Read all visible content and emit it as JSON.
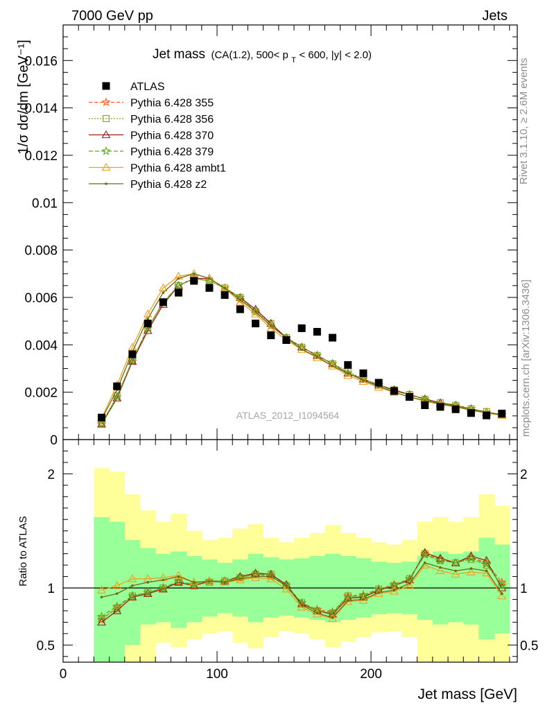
{
  "header": {
    "left": "7000 GeV pp",
    "right": "Jets",
    "title_main": "Jet mass",
    "title_sub": "(CA(1.2), 500< p",
    "title_sub_idx": "T",
    "title_sub_end": " < 600, |y| < 2.0)"
  },
  "side": {
    "rivet": "Rivet 3.1.10, ≥ 2.6M events",
    "mcplots": "mcplots.cern.ch [arXiv:1306.3436]"
  },
  "watermark": "ATLAS_2012_I1094564",
  "chart_data": [
    {
      "type": "line",
      "xlabel": "Jet mass [GeV]",
      "ylabel": "1/σ dσ/dm [GeV⁻¹]",
      "xlim": [
        0,
        295
      ],
      "ylim": [
        0,
        0.0175
      ],
      "yticks": [
        0,
        0.002,
        0.004,
        0.006,
        0.008,
        0.01,
        0.012,
        0.014,
        0.016
      ],
      "ytick_labels": [
        "0",
        "0.002",
        "0.004",
        "0.006",
        "0.008",
        "0.01",
        "0.012",
        "0.014",
        "0.016"
      ],
      "x": [
        25,
        35,
        45,
        55,
        65,
        75,
        85,
        95,
        105,
        115,
        125,
        135,
        145,
        155,
        165,
        175,
        185,
        195,
        205,
        215,
        225,
        235,
        245,
        255,
        265,
        275,
        285
      ],
      "data": {
        "name": "ATLAS",
        "values": [
          0.00093,
          0.00225,
          0.0036,
          0.0049,
          0.0058,
          0.0062,
          0.0067,
          0.0064,
          0.0061,
          0.0055,
          0.0049,
          0.0044,
          0.0042,
          0.0047,
          0.00455,
          0.0043,
          0.00315,
          0.0028,
          0.0024,
          0.00205,
          0.0018,
          0.00145,
          0.00138,
          0.00128,
          0.00112,
          0.00102,
          0.0011
        ]
      },
      "series": [
        {
          "name": "Pythia 6.428 355",
          "color": "#ff5a1f",
          "marker": "star",
          "dash": "5,3",
          "values": [
            0.00065,
            0.0018,
            0.0033,
            0.0047,
            0.0058,
            0.0065,
            0.0068,
            0.0067,
            0.0064,
            0.0059,
            0.0054,
            0.0048,
            0.0043,
            0.0039,
            0.00355,
            0.0032,
            0.0028,
            0.00255,
            0.0023,
            0.00205,
            0.0019,
            0.0017,
            0.0015,
            0.00145,
            0.0013,
            0.00115,
            0.00105
          ]
        },
        {
          "name": "Pythia 6.428 356",
          "color": "#7fa01e",
          "marker": "square",
          "dash": "2,2",
          "values": [
            0.00068,
            0.00185,
            0.00335,
            0.0047,
            0.0058,
            0.0065,
            0.0068,
            0.0067,
            0.0064,
            0.006,
            0.0054,
            0.0049,
            0.0043,
            0.0039,
            0.00355,
            0.0032,
            0.0029,
            0.00255,
            0.0023,
            0.0021,
            0.0019,
            0.0017,
            0.00155,
            0.00145,
            0.0013,
            0.00118,
            0.00105
          ]
        },
        {
          "name": "Pythia 6.428 370",
          "color": "#a01818",
          "marker": "triangle",
          "dash": "",
          "values": [
            0.00065,
            0.00175,
            0.0033,
            0.0046,
            0.0057,
            0.0065,
            0.0068,
            0.0068,
            0.0064,
            0.006,
            0.0055,
            0.0049,
            0.0043,
            0.0039,
            0.00355,
            0.0032,
            0.0028,
            0.00255,
            0.0023,
            0.0021,
            0.0019,
            0.00172,
            0.00155,
            0.00145,
            0.0013,
            0.00115,
            0.00105
          ]
        },
        {
          "name": "Pythia 6.428 379",
          "color": "#5cae1e",
          "marker": "star",
          "dash": "6,3",
          "values": [
            0.00068,
            0.0018,
            0.00335,
            0.0047,
            0.0058,
            0.0065,
            0.0068,
            0.0067,
            0.0064,
            0.006,
            0.0054,
            0.0048,
            0.0043,
            0.0039,
            0.00355,
            0.0032,
            0.0028,
            0.00255,
            0.0023,
            0.00205,
            0.0019,
            0.0017,
            0.0015,
            0.00145,
            0.0013,
            0.00115,
            0.00105
          ]
        },
        {
          "name": "Pythia 6.428 ambt1",
          "color": "#f0a020",
          "marker": "triangle",
          "dash": "",
          "values": [
            0.0009,
            0.0023,
            0.0039,
            0.0053,
            0.0064,
            0.0069,
            0.007,
            0.0068,
            0.0064,
            0.0058,
            0.0053,
            0.0047,
            0.0042,
            0.0038,
            0.00345,
            0.0031,
            0.0027,
            0.00245,
            0.0022,
            0.002,
            0.0018,
            0.00162,
            0.00148,
            0.00138,
            0.00123,
            0.00112,
            0.00102
          ]
        },
        {
          "name": "Pythia 6.428 z2",
          "color": "#6b6b10",
          "marker": "dot",
          "dash": "",
          "values": [
            0.00085,
            0.0021,
            0.0037,
            0.0051,
            0.0062,
            0.0068,
            0.007,
            0.0068,
            0.0064,
            0.0059,
            0.0054,
            0.0048,
            0.0043,
            0.0038,
            0.0035,
            0.0031,
            0.0028,
            0.0025,
            0.00225,
            0.002,
            0.0018,
            0.00165,
            0.0015,
            0.0014,
            0.00125,
            0.00115,
            0.00103
          ]
        }
      ]
    },
    {
      "type": "line",
      "xlabel": "Jet mass [GeV]",
      "ylabel": "Ratio to ATLAS",
      "xlim": [
        0,
        295
      ],
      "ylim": [
        0.35,
        2.3
      ],
      "yticks": [
        0.5,
        1,
        2
      ],
      "ytick_labels": [
        "0.5",
        "1",
        "2"
      ],
      "xticks": [
        0,
        100,
        200
      ],
      "xtick_labels": [
        "0",
        "100",
        "200"
      ],
      "band_edges": [
        20,
        30,
        40,
        50,
        60,
        70,
        80,
        90,
        100,
        110,
        120,
        130,
        140,
        150,
        160,
        170,
        180,
        190,
        200,
        210,
        220,
        230,
        240,
        250,
        260,
        270,
        280,
        290
      ],
      "band_inner": {
        "lo": [
          0.35,
          0.35,
          0.5,
          0.68,
          0.7,
          0.65,
          0.7,
          0.75,
          0.78,
          0.75,
          0.7,
          0.74,
          0.76,
          0.74,
          0.72,
          0.7,
          0.72,
          0.74,
          0.77,
          0.78,
          0.77,
          0.72,
          0.68,
          0.7,
          0.68,
          0.55,
          0.6
        ],
        "hi": [
          1.62,
          1.58,
          1.42,
          1.35,
          1.3,
          1.32,
          1.28,
          1.25,
          1.22,
          1.25,
          1.3,
          1.27,
          1.25,
          1.26,
          1.28,
          1.3,
          1.28,
          1.26,
          1.23,
          1.22,
          1.23,
          1.28,
          1.32,
          1.3,
          1.32,
          1.44,
          1.38
        ]
      },
      "band_outer": {
        "lo": [
          0.35,
          0.35,
          0.35,
          0.35,
          0.52,
          0.48,
          0.55,
          0.6,
          0.62,
          0.52,
          0.47,
          0.57,
          0.62,
          0.6,
          0.55,
          0.48,
          0.53,
          0.57,
          0.61,
          0.62,
          0.57,
          0.35,
          0.35,
          0.35,
          0.35,
          0.35,
          0.35
        ],
        "hi": [
          2.05,
          2.02,
          1.82,
          1.68,
          1.58,
          1.65,
          1.5,
          1.42,
          1.44,
          1.52,
          1.56,
          1.44,
          1.4,
          1.44,
          1.48,
          1.55,
          1.48,
          1.44,
          1.4,
          1.38,
          1.42,
          1.58,
          1.62,
          1.58,
          1.62,
          1.82,
          1.72
        ]
      },
      "x": [
        25,
        35,
        45,
        55,
        65,
        75,
        85,
        95,
        105,
        115,
        125,
        135,
        145,
        155,
        165,
        175,
        185,
        195,
        205,
        215,
        225,
        235,
        245,
        255,
        265,
        275,
        285
      ],
      "series": [
        {
          "name": "Pythia 6.428 355",
          "color": "#ff5a1f",
          "marker": "star",
          "dash": "5,3",
          "values": [
            0.72,
            0.83,
            0.93,
            0.96,
            1.0,
            1.05,
            1.02,
            1.06,
            1.06,
            1.09,
            1.12,
            1.1,
            1.02,
            0.87,
            0.81,
            0.79,
            0.93,
            0.94,
            0.99,
            1.03,
            1.08,
            1.3,
            1.25,
            1.22,
            1.27,
            1.22,
            1.05
          ]
        },
        {
          "name": "Pythia 6.428 356",
          "color": "#7fa01e",
          "marker": "square",
          "dash": "2,2",
          "values": [
            0.73,
            0.82,
            0.93,
            0.96,
            1.0,
            1.05,
            1.02,
            1.05,
            1.06,
            1.09,
            1.12,
            1.12,
            1.02,
            0.87,
            0.8,
            0.78,
            0.93,
            0.92,
            0.99,
            1.02,
            1.08,
            1.3,
            1.24,
            1.22,
            1.25,
            1.2,
            1.03
          ]
        },
        {
          "name": "Pythia 6.428 370",
          "color": "#a01818",
          "marker": "triangle",
          "dash": "",
          "values": [
            0.7,
            0.8,
            0.92,
            0.95,
            0.99,
            1.05,
            1.02,
            1.06,
            1.06,
            1.1,
            1.13,
            1.12,
            1.03,
            0.86,
            0.8,
            0.77,
            0.91,
            0.92,
            0.98,
            1.02,
            1.07,
            1.31,
            1.26,
            1.22,
            1.28,
            1.24,
            1.0
          ]
        },
        {
          "name": "Pythia 6.428 379",
          "color": "#5cae1e",
          "marker": "star",
          "dash": "6,3",
          "values": [
            0.75,
            0.84,
            0.93,
            0.96,
            1.0,
            1.06,
            1.03,
            1.06,
            1.06,
            1.09,
            1.12,
            1.11,
            1.02,
            0.87,
            0.8,
            0.78,
            0.92,
            0.93,
            0.99,
            1.02,
            1.08,
            1.29,
            1.24,
            1.22,
            1.26,
            1.21,
            1.02
          ]
        },
        {
          "name": "Pythia 6.428 ambt1",
          "color": "#f0a020",
          "marker": "triangle",
          "dash": "",
          "values": [
            0.98,
            1.02,
            1.08,
            1.08,
            1.09,
            1.11,
            1.05,
            1.06,
            1.05,
            1.07,
            1.09,
            1.08,
            0.99,
            0.83,
            0.77,
            0.73,
            0.88,
            0.89,
            0.95,
            0.97,
            1.02,
            1.2,
            1.15,
            1.12,
            1.14,
            1.13,
            0.93
          ]
        },
        {
          "name": "Pythia 6.428 z2",
          "color": "#6b6b10",
          "marker": "dot",
          "dash": "",
          "values": [
            0.92,
            0.95,
            1.02,
            1.05,
            1.07,
            1.1,
            1.05,
            1.06,
            1.05,
            1.08,
            1.1,
            1.1,
            1.02,
            0.85,
            0.78,
            0.74,
            0.89,
            0.9,
            0.96,
            0.98,
            1.04,
            1.22,
            1.18,
            1.15,
            1.17,
            1.15,
            0.95
          ]
        }
      ]
    }
  ]
}
